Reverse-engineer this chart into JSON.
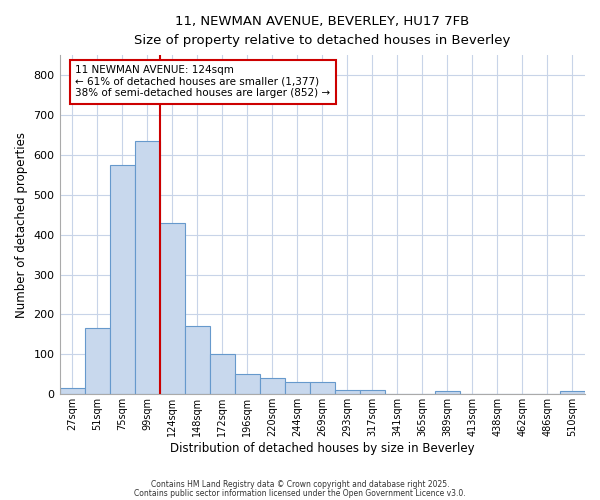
{
  "title1": "11, NEWMAN AVENUE, BEVERLEY, HU17 7FB",
  "title2": "Size of property relative to detached houses in Beverley",
  "xlabel": "Distribution of detached houses by size in Beverley",
  "ylabel": "Number of detached properties",
  "bin_edges": [
    27,
    51,
    75,
    99,
    123,
    147,
    171,
    195,
    219,
    243,
    267,
    291,
    315,
    339,
    363,
    387,
    411,
    435,
    459,
    483,
    507,
    531
  ],
  "bin_labels": [
    "27sqm",
    "51sqm",
    "75sqm",
    "99sqm",
    "124sqm",
    "148sqm",
    "172sqm",
    "196sqm",
    "220sqm",
    "244sqm",
    "269sqm",
    "293sqm",
    "317sqm",
    "341sqm",
    "365sqm",
    "389sqm",
    "413sqm",
    "438sqm",
    "462sqm",
    "486sqm",
    "510sqm"
  ],
  "bar_heights": [
    15,
    165,
    575,
    635,
    430,
    170,
    100,
    52,
    40,
    30,
    30,
    12,
    10,
    0,
    0,
    8,
    0,
    0,
    0,
    0,
    7
  ],
  "bar_color": "#c8d8ed",
  "bar_edgecolor": "#6699cc",
  "vline_x": 123,
  "vline_color": "#cc0000",
  "annotation_line1": "11 NEWMAN AVENUE: 124sqm",
  "annotation_line2": "← 61% of detached houses are smaller (1,377)",
  "annotation_line3": "38% of semi-detached houses are larger (852) →",
  "annotation_box_color": "#cc0000",
  "ylim": [
    0,
    850
  ],
  "yticks": [
    0,
    100,
    200,
    300,
    400,
    500,
    600,
    700,
    800
  ],
  "grid_color": "#c8d4e8",
  "bg_color": "#ffffff",
  "ax_bg_color": "#ffffff",
  "footer1": "Contains HM Land Registry data © Crown copyright and database right 2025.",
  "footer2": "Contains public sector information licensed under the Open Government Licence v3.0."
}
